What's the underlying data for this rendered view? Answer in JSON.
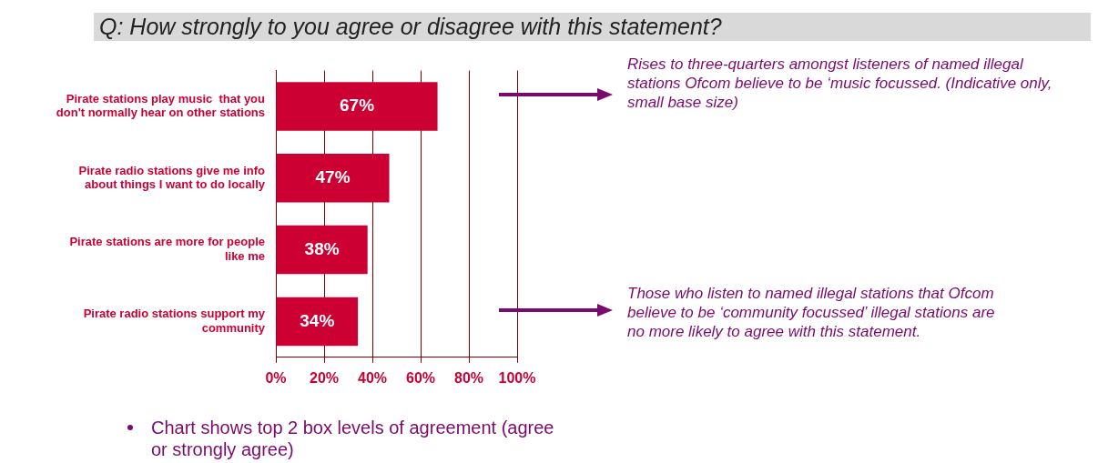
{
  "chart_data": {
    "type": "bar",
    "orientation": "horizontal",
    "title": "Q: How strongly to you agree or disagree with this statement?",
    "categories": [
      "Pirate stations play music  that you don't normally hear on other stations",
      "Pirate radio stations give me info about things I want to do locally",
      "Pirate stations are more for people like me",
      "Pirate radio stations support my community"
    ],
    "values": [
      67,
      47,
      38,
      34
    ],
    "color": "#cc0033",
    "data_labels": true,
    "value_labels": [
      "67%",
      "47%",
      "38%",
      "34%"
    ],
    "xlim": [
      0,
      100
    ],
    "xticks": [
      {
        "value": 0,
        "label": "0%"
      },
      {
        "value": 20,
        "label": "20%"
      },
      {
        "value": 40,
        "label": "40%"
      },
      {
        "value": 60,
        "label": "60%"
      },
      {
        "value": 80,
        "label": "80%"
      },
      {
        "value": 100,
        "label": "100%"
      }
    ],
    "grid": "x",
    "legend": false,
    "annotations": [
      "Rises to three-quarters amongst listeners of named illegal stations Ofcom believe to be ‘music focussed. (Indicative only, small base size)",
      "Those who listen to named illegal stations that Ofcom believe to be ‘community focussed’ illegal stations are no more likely to agree with this statement.",
      "Chart shows top 2 box levels of agreement (agree or strongly agree)"
    ]
  }
}
